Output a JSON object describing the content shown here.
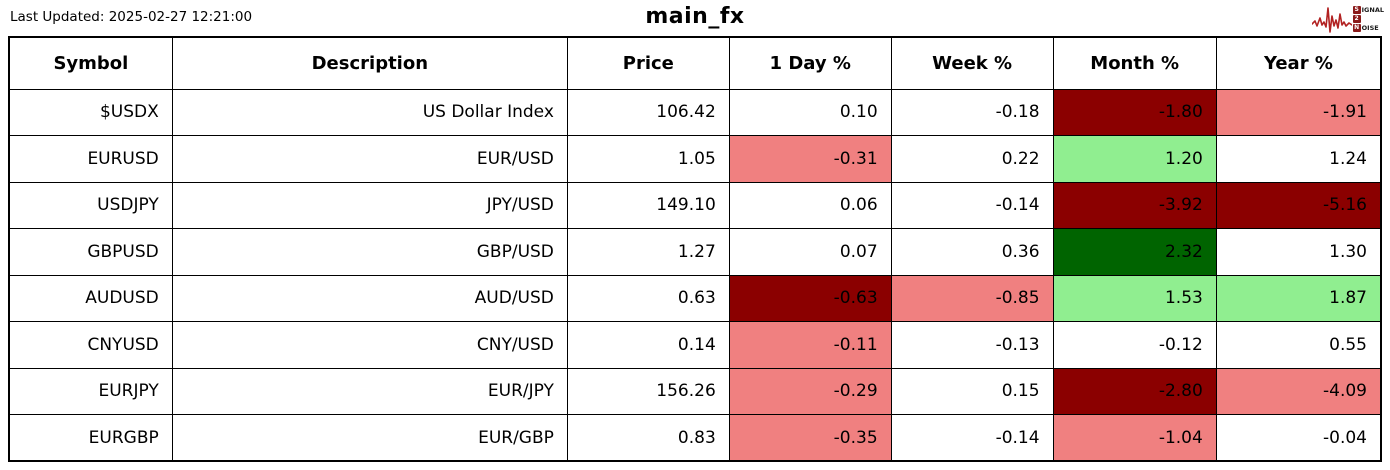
{
  "header": {
    "last_updated": "Last Updated: 2025-02-27 12:21:00",
    "title": "main_fx",
    "logo": {
      "line1_initial": "S",
      "line1_rest": "IGNAL",
      "line2_initial": "2",
      "line2_rest": "",
      "line3_initial": "N",
      "line3_rest": "OISE"
    }
  },
  "colors": {
    "darkred": "#8b0000",
    "salmon": "#f08080",
    "lightgreen": "#90ee90",
    "darkgreen": "#006400",
    "none": "#ffffff",
    "logo_wave": "#b22222"
  },
  "chart_data": {
    "type": "table",
    "title": "main_fx",
    "columns": [
      "Symbol",
      "Description",
      "Price",
      "1 Day %",
      "Week %",
      "Month %",
      "Year %"
    ],
    "rows": [
      {
        "symbol": "$USDX",
        "description": "US Dollar Index",
        "price": "106.42",
        "day": "0.10",
        "week": "-0.18",
        "month": "-1.80",
        "year": "-1.91",
        "colors": {
          "day": "none",
          "week": "none",
          "month": "darkred",
          "year": "salmon"
        }
      },
      {
        "symbol": "EURUSD",
        "description": "EUR/USD",
        "price": "1.05",
        "day": "-0.31",
        "week": "0.22",
        "month": "1.20",
        "year": "1.24",
        "colors": {
          "day": "salmon",
          "week": "none",
          "month": "lightgreen",
          "year": "none"
        }
      },
      {
        "symbol": "USDJPY",
        "description": "JPY/USD",
        "price": "149.10",
        "day": "0.06",
        "week": "-0.14",
        "month": "-3.92",
        "year": "-5.16",
        "colors": {
          "day": "none",
          "week": "none",
          "month": "darkred",
          "year": "darkred"
        }
      },
      {
        "symbol": "GBPUSD",
        "description": "GBP/USD",
        "price": "1.27",
        "day": "0.07",
        "week": "0.36",
        "month": "2.32",
        "year": "1.30",
        "colors": {
          "day": "none",
          "week": "none",
          "month": "darkgreen",
          "year": "none"
        }
      },
      {
        "symbol": "AUDUSD",
        "description": "AUD/USD",
        "price": "0.63",
        "day": "-0.63",
        "week": "-0.85",
        "month": "1.53",
        "year": "1.87",
        "colors": {
          "day": "darkred",
          "week": "salmon",
          "month": "lightgreen",
          "year": "lightgreen"
        }
      },
      {
        "symbol": "CNYUSD",
        "description": "CNY/USD",
        "price": "0.14",
        "day": "-0.11",
        "week": "-0.13",
        "month": "-0.12",
        "year": "0.55",
        "colors": {
          "day": "salmon",
          "week": "none",
          "month": "none",
          "year": "none"
        }
      },
      {
        "symbol": "EURJPY",
        "description": "EUR/JPY",
        "price": "156.26",
        "day": "-0.29",
        "week": "0.15",
        "month": "-2.80",
        "year": "-4.09",
        "colors": {
          "day": "salmon",
          "week": "none",
          "month": "darkred",
          "year": "salmon"
        }
      },
      {
        "symbol": "EURGBP",
        "description": "EUR/GBP",
        "price": "0.83",
        "day": "-0.35",
        "week": "-0.14",
        "month": "-1.04",
        "year": "-0.04",
        "colors": {
          "day": "salmon",
          "week": "none",
          "month": "salmon",
          "year": "none"
        }
      }
    ],
    "column_widths_pct": [
      11.9,
      28.8,
      11.8,
      11.8,
      11.8,
      11.9,
      12.0
    ]
  }
}
